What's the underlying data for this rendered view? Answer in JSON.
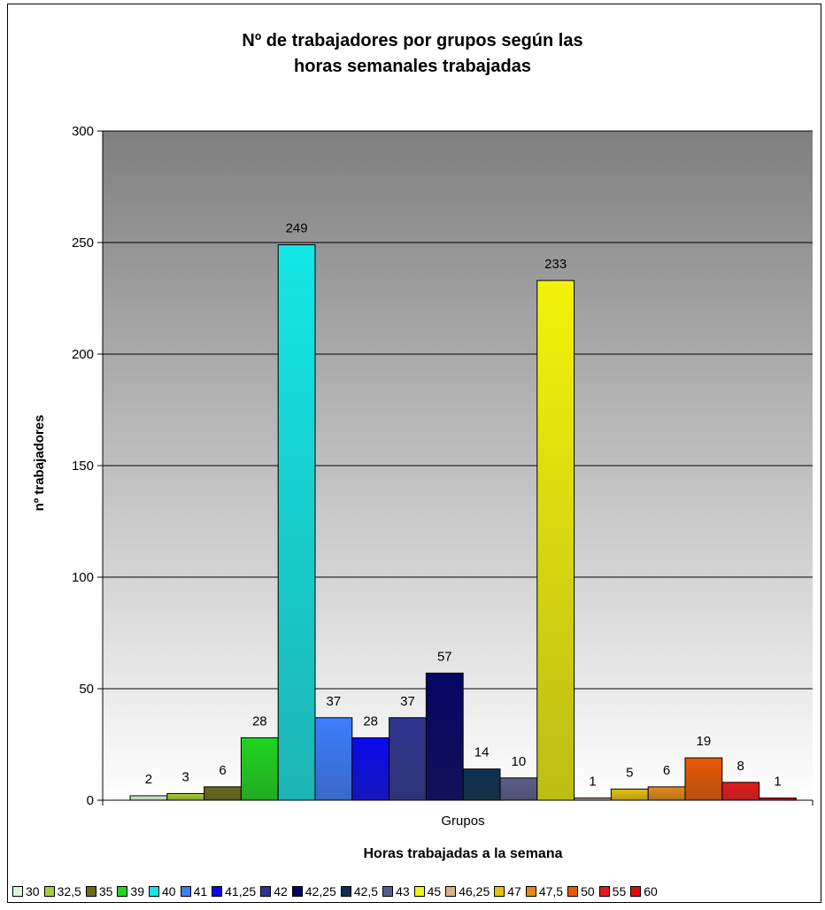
{
  "chart_data": {
    "type": "bar",
    "title_line1": "Nº de trabajadores por grupos según las",
    "title_line2": "horas semanales trabajadas",
    "xlabel": "Horas trabajadas a la semana",
    "ylabel": "nº trabajadores",
    "category_label": "Grupos",
    "ylim": [
      0,
      300
    ],
    "yticks": [
      "0",
      "50",
      "100",
      "150",
      "200",
      "250",
      "300"
    ],
    "grid": true,
    "legend_position": "bottom",
    "series": [
      {
        "name": "30",
        "value": 2,
        "color": "#d9f7d9"
      },
      {
        "name": "32,5",
        "value": 3,
        "color": "#a8cc33"
      },
      {
        "name": "35",
        "value": 6,
        "color": "#6b6b1a"
      },
      {
        "name": "39",
        "value": 28,
        "color": "#1ed61e"
      },
      {
        "name": "40",
        "value": 249,
        "color": "#14e6e6"
      },
      {
        "name": "41",
        "value": 37,
        "color": "#3d7dff"
      },
      {
        "name": "41,25",
        "value": 28,
        "color": "#0a0aee"
      },
      {
        "name": "42",
        "value": 37,
        "color": "#2f3590"
      },
      {
        "name": "42,25",
        "value": 57,
        "color": "#050566"
      },
      {
        "name": "42,5",
        "value": 14,
        "color": "#0b3050"
      },
      {
        "name": "43",
        "value": 10,
        "color": "#5c5c8c"
      },
      {
        "name": "45",
        "value": 233,
        "color": "#f2f20a"
      },
      {
        "name": "46,25",
        "value": 1,
        "color": "#d9b08c"
      },
      {
        "name": "47",
        "value": 5,
        "color": "#e6c20e"
      },
      {
        "name": "47,5",
        "value": 6,
        "color": "#e48a1a"
      },
      {
        "name": "50",
        "value": 19,
        "color": "#e85a05"
      },
      {
        "name": "55",
        "value": 8,
        "color": "#e61a1a"
      },
      {
        "name": "60",
        "value": 1,
        "color": "#e60a0a"
      }
    ]
  }
}
